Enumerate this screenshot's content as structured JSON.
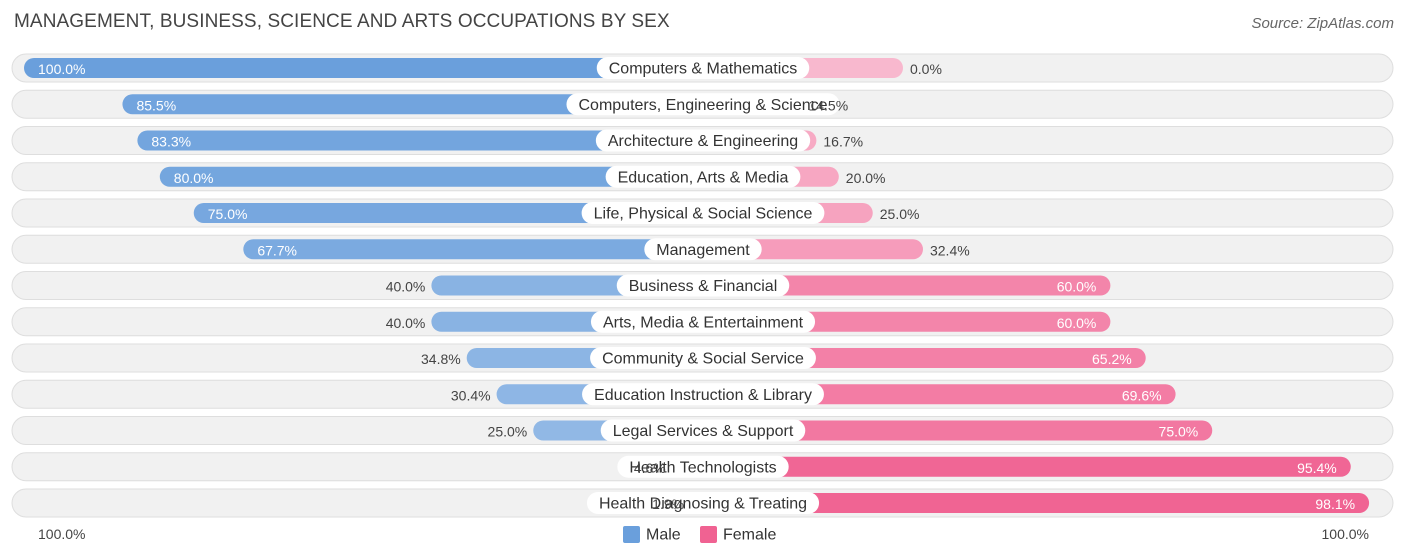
{
  "chart_data": {
    "type": "bar",
    "orientation": "horizontal-diverging",
    "title": "MANAGEMENT, BUSINESS, SCIENCE AND ARTS OCCUPATIONS BY SEX",
    "source": "Source: ZipAtlas.com",
    "categories": [
      "Computers & Mathematics",
      "Computers, Engineering & Science",
      "Architecture & Engineering",
      "Education, Arts & Media",
      "Life, Physical & Social Science",
      "Management",
      "Business & Financial",
      "Arts, Media & Entertainment",
      "Community & Social Service",
      "Education Instruction & Library",
      "Legal Services & Support",
      "Health Technologists",
      "Health Diagnosing & Treating"
    ],
    "series": [
      {
        "name": "Male",
        "color": "#6a9fdc",
        "values": [
          100.0,
          85.5,
          83.3,
          80.0,
          75.0,
          67.7,
          40.0,
          40.0,
          34.8,
          30.4,
          25.0,
          4.6,
          1.9
        ],
        "labels": [
          "100.0%",
          "85.5%",
          "83.3%",
          "80.0%",
          "75.0%",
          "67.7%",
          "40.0%",
          "40.0%",
          "34.8%",
          "30.4%",
          "25.0%",
          "4.6%",
          "1.9%"
        ]
      },
      {
        "name": "Female",
        "color": "#f06292",
        "values": [
          0.0,
          14.5,
          16.7,
          20.0,
          25.0,
          32.4,
          60.0,
          60.0,
          65.2,
          69.6,
          75.0,
          95.4,
          98.1
        ],
        "labels": [
          "0.0%",
          "14.5%",
          "16.7%",
          "20.0%",
          "25.0%",
          "32.4%",
          "60.0%",
          "60.0%",
          "65.2%",
          "69.6%",
          "75.0%",
          "95.4%",
          "98.1%"
        ]
      }
    ],
    "xlim": [
      0,
      100
    ],
    "axis_left_label": "100.0%",
    "axis_right_label": "100.0%",
    "legend": [
      "Male",
      "Female"
    ],
    "legend_position": "bottom-center"
  }
}
